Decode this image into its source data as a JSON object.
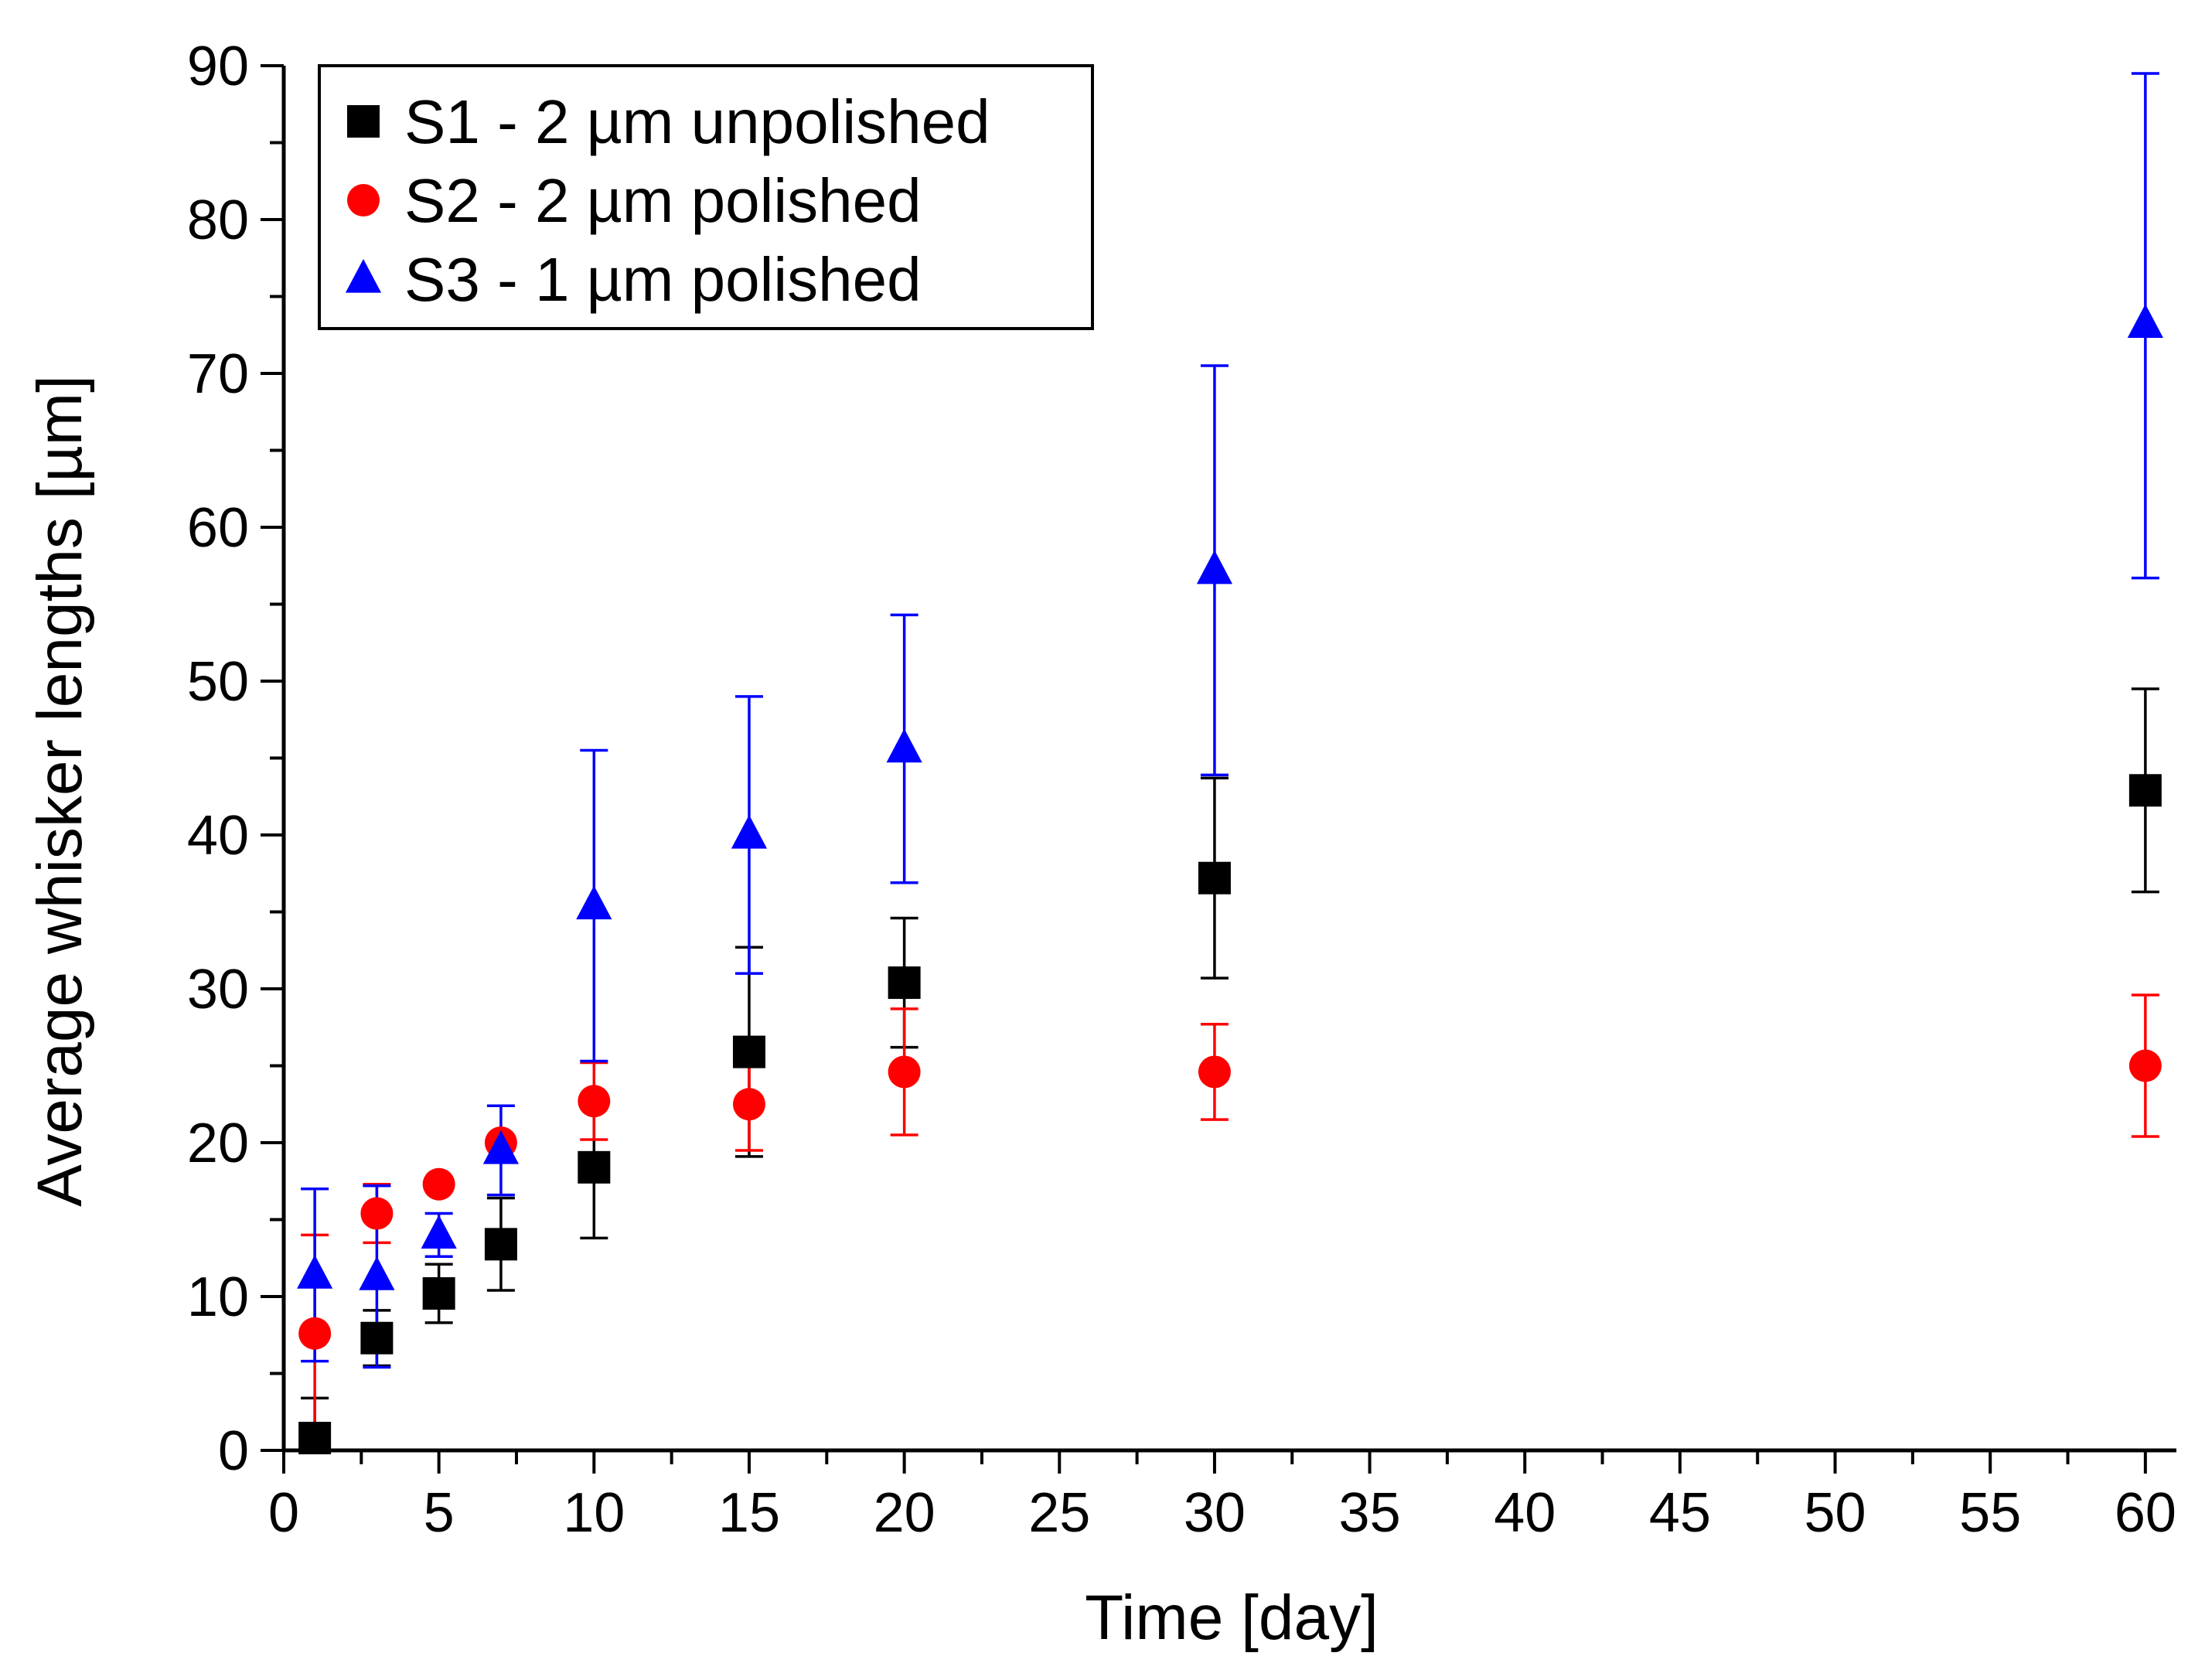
{
  "chart_data": {
    "type": "scatter",
    "title": "",
    "xlabel": "Time [day]",
    "ylabel": "Average whisker lengths [µm]",
    "xlim": [
      0,
      61
    ],
    "ylim": [
      0,
      90
    ],
    "xticks": [
      0,
      5,
      10,
      15,
      20,
      25,
      30,
      35,
      40,
      45,
      50,
      55,
      60
    ],
    "yticks": [
      0,
      10,
      20,
      30,
      40,
      50,
      60,
      70,
      80,
      90
    ],
    "grid": false,
    "legend_position": "top-left",
    "series": [
      {
        "name": "S1 - 2 µm unpolished",
        "marker": "square",
        "color": "#000000",
        "x": [
          1,
          3,
          5,
          7,
          10,
          15,
          20,
          30,
          60
        ],
        "y": [
          0.8,
          7.3,
          10.2,
          13.4,
          18.4,
          25.9,
          30.4,
          37.2,
          42.9
        ],
        "err_low": [
          0.8,
          1.8,
          1.9,
          3.0,
          4.6,
          6.8,
          4.2,
          6.5,
          6.6
        ],
        "err_high": [
          2.6,
          1.8,
          1.9,
          3.0,
          4.6,
          6.8,
          4.2,
          6.5,
          6.6
        ]
      },
      {
        "name": "S2 - 2 µm polished",
        "marker": "circle",
        "color": "#ff0000",
        "x": [
          1,
          3,
          5,
          7,
          10,
          15,
          20,
          30,
          60
        ],
        "y": [
          7.6,
          15.4,
          17.3,
          20.0,
          22.7,
          22.5,
          24.6,
          24.6,
          25.0
        ],
        "err_low": [
          6.4,
          1.9,
          0,
          0,
          2.5,
          3.0,
          4.1,
          3.1,
          4.6
        ],
        "err_high": [
          6.4,
          1.9,
          0,
          0,
          2.5,
          3.0,
          4.1,
          3.1,
          4.6
        ]
      },
      {
        "name": "S3 - 1 µm polished",
        "marker": "triangle",
        "color": "#0000ff",
        "x": [
          1,
          3,
          5,
          7,
          10,
          15,
          20,
          30,
          60
        ],
        "y": [
          11.4,
          11.3,
          14.0,
          19.5,
          35.4,
          40.0,
          45.6,
          57.2,
          73.2
        ],
        "err_low": [
          5.6,
          5.9,
          1.4,
          2.9,
          10.1,
          9.0,
          8.7,
          13.3,
          16.5
        ],
        "err_high": [
          5.6,
          5.9,
          1.4,
          2.9,
          10.1,
          9.0,
          8.7,
          13.3,
          16.3
        ]
      }
    ]
  }
}
